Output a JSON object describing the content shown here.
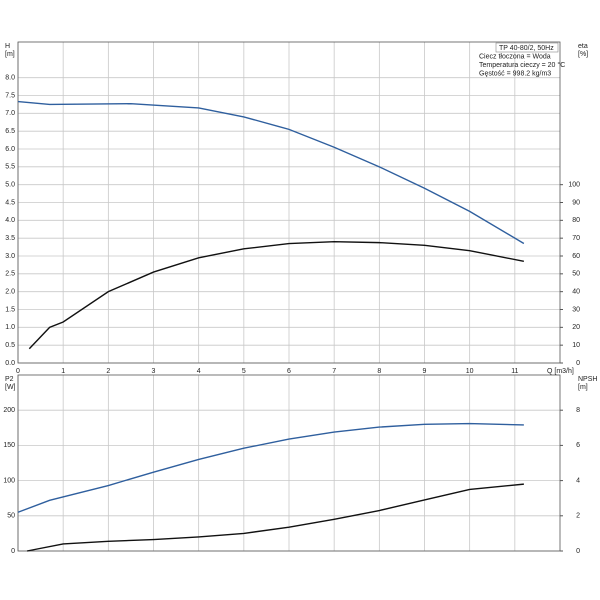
{
  "chart_data": [
    {
      "type": "line",
      "ylabel": [
        "H",
        "[m]"
      ],
      "y2label": [
        "eta",
        "[%]"
      ],
      "xlabel": "Q [m3/h]",
      "annotations": [
        "TP 40-80/2, 50Hz",
        "Ciecz tłoczona = Woda",
        "Temperatura cieczy = 20 °C",
        "Gęstość = 998.2 kg/m3"
      ],
      "xlim": [
        0,
        12
      ],
      "xticks": [
        0,
        1,
        2,
        3,
        4,
        5,
        6,
        7,
        8,
        9,
        10,
        11
      ],
      "xtick_labels": true,
      "ylim": [
        0,
        9
      ],
      "yticks": [
        {
          "value": 0,
          "label": "0.0"
        },
        0.5,
        {
          "value": 1,
          "label": "1.0"
        },
        1.5,
        {
          "value": 2,
          "label": "2.0"
        },
        2.5,
        {
          "value": 3,
          "label": "3.0"
        },
        3.5,
        {
          "value": 4,
          "label": "4.0"
        },
        4.5,
        {
          "value": 5,
          "label": "5.0"
        },
        5.5,
        {
          "value": 6,
          "label": "6.0"
        },
        6.5,
        {
          "value": 7,
          "label": "7.0"
        },
        7.5,
        {
          "value": 8,
          "label": "8.0"
        }
      ],
      "y2lim": [
        0,
        180
      ],
      "y2ticks": [
        0,
        10,
        20,
        30,
        40,
        50,
        60,
        70,
        80,
        90,
        100
      ],
      "grid": true,
      "series": [
        {
          "color": "#2f5f9e",
          "x": [
            0,
            0.7,
            2.5,
            4,
            5,
            6,
            7,
            8,
            9,
            10,
            11.2
          ],
          "values": [
            7.33,
            7.25,
            7.27,
            7.15,
            6.9,
            6.55,
            6.05,
            5.5,
            4.9,
            4.25,
            3.35
          ]
        },
        {
          "color": "#111111",
          "axis": "y2",
          "x": [
            0.25,
            0.7,
            1,
            2,
            3,
            4,
            5,
            6,
            7,
            8,
            9,
            10,
            11.2
          ],
          "values": [
            8,
            20,
            23,
            40,
            51,
            59,
            64,
            67,
            68,
            67.5,
            66,
            63,
            57
          ]
        }
      ]
    },
    {
      "type": "line",
      "ylabel": [
        "P2",
        "[W]"
      ],
      "y2label": [
        "NPSH",
        "[m]"
      ],
      "xlim": [
        0,
        12
      ],
      "xticks": [
        0,
        1,
        2,
        3,
        4,
        5,
        6,
        7,
        8,
        9,
        10,
        11
      ],
      "xtick_labels": false,
      "ylim": [
        0,
        250
      ],
      "yticks": [
        0,
        50,
        100,
        150,
        200
      ],
      "y2lim": [
        0,
        10
      ],
      "y2ticks": [
        0,
        2,
        4,
        6,
        8
      ],
      "grid": true,
      "series": [
        {
          "color": "#2f5f9e",
          "x": [
            0,
            0.7,
            2,
            3,
            4,
            5,
            6,
            7,
            8,
            9,
            10,
            11.2
          ],
          "values": [
            55,
            72,
            93,
            112,
            130,
            146,
            159,
            169,
            176,
            180,
            181,
            179
          ]
        },
        {
          "color": "#111111",
          "axis": "y2",
          "x": [
            0.2,
            1,
            2,
            3,
            4,
            5,
            6,
            7,
            8,
            9,
            10,
            11.2
          ],
          "values": [
            0,
            0.4,
            0.55,
            0.65,
            0.8,
            1.0,
            1.35,
            1.8,
            2.3,
            2.9,
            3.5,
            3.8
          ]
        }
      ]
    }
  ]
}
